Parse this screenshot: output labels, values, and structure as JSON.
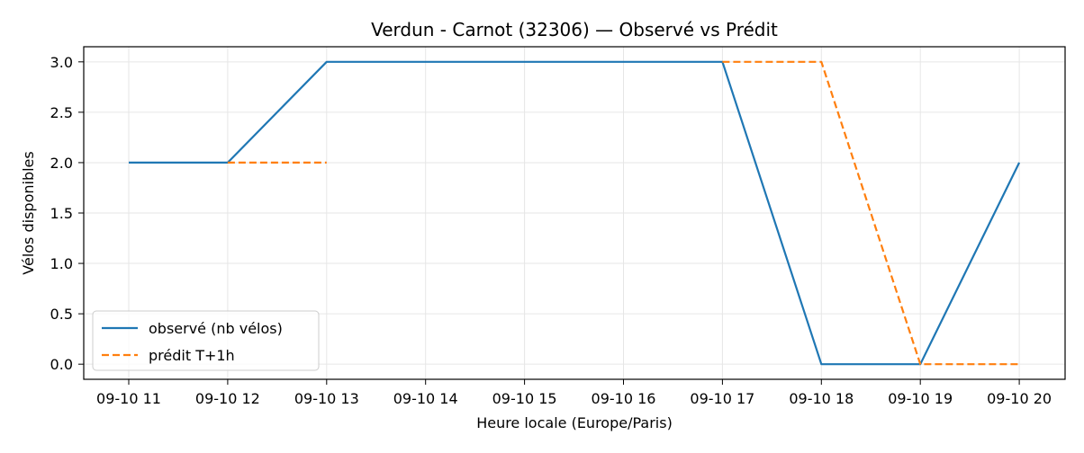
{
  "chart_data": {
    "type": "line",
    "title": "Verdun - Carnot (32306) — Observé vs Prédit",
    "xlabel": "Heure locale (Europe/Paris)",
    "ylabel": "Vélos disponibles",
    "x_ticks": [
      "09-10 11",
      "09-10 12",
      "09-10 13",
      "09-10 14",
      "09-10 15",
      "09-10 16",
      "09-10 17",
      "09-10 18",
      "09-10 19",
      "09-10 20"
    ],
    "y_ticks": [
      "0.0",
      "0.5",
      "1.0",
      "1.5",
      "2.0",
      "2.5",
      "3.0"
    ],
    "ylim": [
      -0.15,
      3.15
    ],
    "grid": true,
    "legend_position": "lower-left",
    "series": [
      {
        "name": "observé (nb vélos)",
        "color": "#1f77b4",
        "style": "solid",
        "points": [
          [
            "09-10 11",
            2
          ],
          [
            "09-10 12",
            2
          ],
          [
            "09-10 13",
            3
          ],
          [
            "09-10 17",
            3
          ],
          [
            "09-10 18",
            0
          ],
          [
            "09-10 19",
            0
          ],
          [
            "09-10 20",
            2
          ]
        ]
      },
      {
        "name": "prédit T+1h",
        "color": "#ff7f0e",
        "style": "dashed",
        "segments": [
          [
            [
              "09-10 12",
              2
            ],
            [
              "09-10 13",
              2
            ]
          ],
          [
            [
              "09-10 17",
              3
            ],
            [
              "09-10 18",
              3
            ],
            [
              "09-10 19",
              0
            ],
            [
              "09-10 20",
              0
            ]
          ]
        ]
      }
    ]
  }
}
